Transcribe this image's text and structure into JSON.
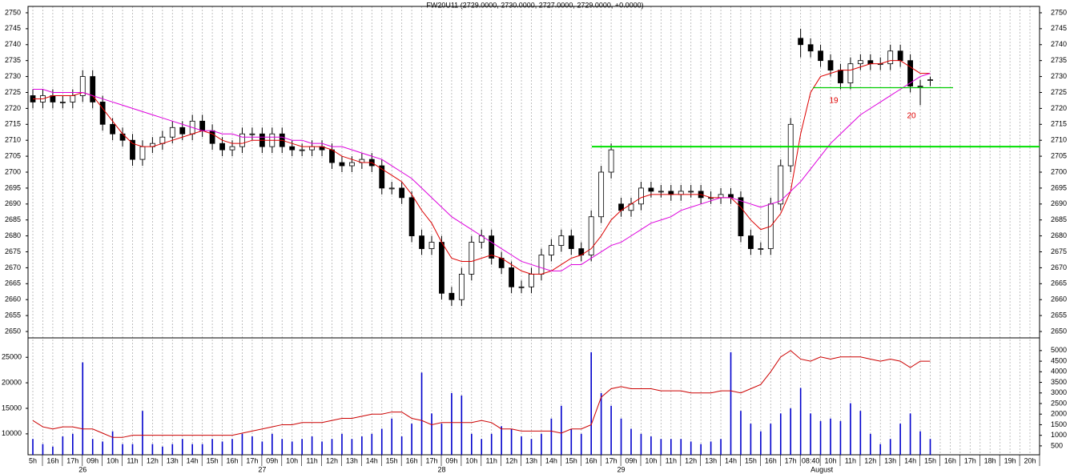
{
  "chart_data": [
    {
      "type": "candlestick",
      "title": "FW20U11 (2729.0000, 2730.0000, 2727.0000, 2729.0000, +0.0000)",
      "categories": [
        "5h",
        null,
        "16h",
        null,
        "17h",
        null,
        "09h",
        null,
        "10h",
        null,
        "11h",
        null,
        "12h",
        null,
        "13h",
        null,
        "14h",
        null,
        "15h",
        null,
        "16h",
        null,
        "17h",
        null,
        "09h",
        null,
        "10h",
        null,
        "11h",
        null,
        "12h",
        null,
        "13h",
        null,
        "14h",
        null,
        "15h",
        null,
        "16h",
        null,
        "17h",
        null,
        "09h",
        null,
        "10h",
        null,
        "11h",
        null,
        "12h",
        null,
        "13h",
        null,
        "14h",
        null,
        "15h",
        null,
        "16h",
        null,
        "17h",
        null,
        "09h",
        null,
        "10h",
        null,
        "11h",
        null,
        "12h",
        null,
        "13h",
        null,
        "14h",
        null,
        "15h",
        null,
        "16h",
        null,
        "17h",
        null,
        "08:40",
        null,
        "10h",
        null,
        "11h",
        null,
        "12h",
        null,
        "13h",
        null,
        "14h",
        null,
        "15h",
        null,
        "16h",
        null,
        "17h",
        null,
        "18h",
        null,
        "19h",
        null,
        "20h"
      ],
      "day_labels": [
        "26",
        "27",
        "28",
        "29",
        "August"
      ],
      "open": [
        2724,
        2722,
        2724,
        2722,
        2722,
        2724,
        2730,
        2722,
        2715,
        2712,
        2710,
        2704,
        2708,
        2709,
        2711,
        2714,
        2712,
        2716,
        2713,
        2709,
        2707,
        2708,
        2712,
        2712,
        2708,
        2712,
        2708,
        2707,
        2707,
        2708,
        2707,
        2703,
        2702,
        2703,
        2704,
        2702,
        2695,
        2695,
        2692,
        2680,
        2676,
        2678,
        2662,
        2660,
        2668,
        2678,
        2680,
        2673,
        2670,
        2664,
        2664,
        2668,
        2674,
        2677,
        2680,
        2676,
        2674,
        2686,
        2700,
        2690,
        2688,
        2690,
        2695,
        2694,
        2694,
        2693,
        2694,
        2694,
        2692,
        2692,
        2693,
        2692,
        2680,
        2676,
        2676,
        2690,
        2702,
        2742,
        2740,
        2738,
        2735,
        2732,
        2728,
        2734,
        2735,
        2734,
        2734,
        2738,
        2735,
        2727,
        2729,
        null,
        null,
        null,
        null,
        null,
        null,
        null,
        null,
        null,
        null
      ],
      "high": [
        2726,
        2726,
        2726,
        2724,
        2726,
        2732,
        2732,
        2724,
        2717,
        2714,
        2712,
        2710,
        2711,
        2713,
        2716,
        2716,
        2718,
        2718,
        2715,
        2711,
        2710,
        2714,
        2714,
        2714,
        2714,
        2714,
        2710,
        2709,
        2710,
        2710,
        2709,
        2705,
        2705,
        2706,
        2706,
        2704,
        2697,
        2697,
        2694,
        2682,
        2680,
        2680,
        2664,
        2670,
        2680,
        2682,
        2682,
        2675,
        2672,
        2666,
        2670,
        2676,
        2679,
        2682,
        2682,
        2678,
        2688,
        2702,
        2709,
        2692,
        2692,
        2697,
        2697,
        2696,
        2696,
        2696,
        2696,
        2696,
        2694,
        2695,
        2695,
        2694,
        2682,
        2678,
        2692,
        2704,
        2717,
        2745,
        2742,
        2740,
        2737,
        2734,
        2736,
        2737,
        2737,
        2736,
        2740,
        2740,
        2737,
        2729,
        2730,
        null,
        null,
        null,
        null,
        null,
        null,
        null,
        null,
        null,
        null
      ],
      "low": [
        2720,
        2720,
        2720,
        2720,
        2720,
        2722,
        2720,
        2713,
        2710,
        2708,
        2702,
        2702,
        2706,
        2707,
        2709,
        2710,
        2710,
        2711,
        2707,
        2705,
        2705,
        2706,
        2710,
        2706,
        2706,
        2706,
        2705,
        2705,
        2705,
        2705,
        2701,
        2700,
        2700,
        2701,
        2700,
        2693,
        2693,
        2690,
        2678,
        2674,
        2674,
        2660,
        2658,
        2658,
        2666,
        2676,
        2671,
        2668,
        2662,
        2662,
        2662,
        2666,
        2672,
        2675,
        2674,
        2672,
        2672,
        2684,
        2698,
        2686,
        2686,
        2688,
        2692,
        2692,
        2691,
        2691,
        2692,
        2690,
        2690,
        2690,
        2690,
        2678,
        2674,
        2674,
        2674,
        2688,
        2700,
        2736,
        2736,
        2733,
        2730,
        2726,
        2726,
        2732,
        2732,
        2732,
        2732,
        2733,
        2725,
        2721,
        2727,
        null,
        null,
        null,
        null,
        null,
        null,
        null,
        null,
        null,
        null
      ],
      "close": [
        2722,
        2724,
        2722,
        2722,
        2724,
        2730,
        2722,
        2715,
        2712,
        2710,
        2704,
        2708,
        2709,
        2711,
        2714,
        2712,
        2716,
        2713,
        2709,
        2707,
        2708,
        2712,
        2712,
        2708,
        2712,
        2708,
        2707,
        2707,
        2708,
        2707,
        2703,
        2702,
        2703,
        2704,
        2702,
        2695,
        2695,
        2692,
        2680,
        2676,
        2678,
        2662,
        2660,
        2668,
        2678,
        2680,
        2673,
        2670,
        2664,
        2664,
        2668,
        2674,
        2677,
        2680,
        2676,
        2674,
        2686,
        2700,
        2707,
        2688,
        2690,
        2695,
        2694,
        2694,
        2693,
        2694,
        2694,
        2692,
        2692,
        2693,
        2692,
        2680,
        2676,
        2676,
        2690,
        2702,
        2715,
        2740,
        2738,
        2735,
        2732,
        2728,
        2734,
        2735,
        2734,
        2734,
        2738,
        2735,
        2727,
        2727,
        2729,
        null,
        null,
        null,
        null,
        null,
        null,
        null,
        null,
        null,
        null
      ],
      "series": [
        {
          "color": "#dd0000",
          "values": [
            2723,
            2723,
            2724,
            2724,
            2724,
            2725,
            2724,
            2720,
            2716,
            2712,
            2709,
            2708,
            2708,
            2709,
            2710,
            2711,
            2712,
            2713,
            2712,
            2710,
            2709,
            2709,
            2710,
            2710,
            2710,
            2710,
            2709,
            2708,
            2708,
            2708,
            2707,
            2705,
            2704,
            2703,
            2703,
            2701,
            2699,
            2697,
            2693,
            2688,
            2684,
            2678,
            2673,
            2672,
            2672,
            2673,
            2674,
            2673,
            2671,
            2669,
            2668,
            2668,
            2669,
            2671,
            2673,
            2674,
            2676,
            2680,
            2685,
            2688,
            2690,
            2692,
            2693,
            2693,
            2693,
            2693,
            2693,
            2693,
            2692,
            2692,
            2692,
            2689,
            2685,
            2682,
            2683,
            2687,
            2694,
            2712,
            2725,
            2730,
            2731,
            2732,
            2732,
            2733,
            2734,
            2734,
            2735,
            2735,
            2733,
            2731,
            2731,
            null,
            null,
            null,
            null,
            null,
            null,
            null,
            null,
            null,
            null
          ]
        },
        {
          "color": "#dd00dd",
          "values": [
            2726,
            2726,
            2725,
            2725,
            2725,
            2725,
            2724,
            2723,
            2722,
            2721,
            2720,
            2719,
            2718,
            2717,
            2716,
            2715,
            2714,
            2713,
            2713,
            2712,
            2712,
            2711,
            2711,
            2711,
            2711,
            2711,
            2710,
            2710,
            2709,
            2709,
            2708,
            2708,
            2707,
            2706,
            2705,
            2704,
            2702,
            2700,
            2698,
            2695,
            2692,
            2689,
            2686,
            2684,
            2682,
            2680,
            2678,
            2676,
            2674,
            2672,
            2671,
            2670,
            2669,
            2669,
            2671,
            2671,
            2673,
            2675,
            2677,
            2678,
            2680,
            2682,
            2684,
            2685,
            2686,
            2688,
            2689,
            2690,
            2691,
            2692,
            2692,
            2691,
            2690,
            2689,
            2690,
            2691,
            2694,
            2697,
            2701,
            2705,
            2709,
            2712,
            2715,
            2718,
            2720,
            2722,
            2724,
            2726,
            2728,
            2730,
            2731,
            null,
            null,
            null,
            null,
            null,
            null,
            null,
            null,
            null,
            null
          ]
        }
      ],
      "hlines": [
        {
          "value": 2708,
          "color": "#00e000"
        },
        {
          "value": 2726.5,
          "color": "#00cc00"
        }
      ],
      "annotations": [
        "19",
        "20"
      ],
      "annotation_color": "#e00000",
      "ylim": [
        2648,
        2752
      ],
      "yticks": [
        2650,
        2655,
        2660,
        2665,
        2670,
        2675,
        2680,
        2685,
        2690,
        2695,
        2700,
        2705,
        2710,
        2715,
        2720,
        2725,
        2730,
        2735,
        2740,
        2745,
        2750
      ]
    },
    {
      "type": "bar",
      "values": [
        9000,
        8000,
        7500,
        9500,
        10000,
        24000,
        9000,
        8500,
        10500,
        8000,
        8000,
        14500,
        8000,
        7500,
        8000,
        9000,
        8000,
        8000,
        9000,
        8500,
        9000,
        10000,
        9500,
        8500,
        10000,
        9000,
        8500,
        9000,
        9500,
        8500,
        9000,
        10000,
        9000,
        9500,
        10000,
        11000,
        13000,
        9500,
        12000,
        22000,
        14000,
        12000,
        18000,
        17500,
        10000,
        9000,
        10000,
        11500,
        11000,
        9500,
        9000,
        10000,
        13000,
        15500,
        11000,
        10000,
        26000,
        18000,
        15500,
        13000,
        11000,
        10000,
        9500,
        9000,
        9000,
        9000,
        8500,
        8000,
        8500,
        9000,
        26000,
        14500,
        12000,
        10500,
        12000,
        14000,
        15000,
        19000,
        14000,
        12500,
        13000,
        12500,
        16000,
        14500,
        10000,
        8000,
        9000,
        12000,
        14000,
        10500,
        9000,
        null,
        null,
        null,
        null,
        null,
        null,
        null,
        null,
        null,
        null
      ],
      "color": "#0000cc",
      "ylim": [
        5900,
        28800
      ],
      "yticks": [
        10000,
        15000,
        20000,
        25000
      ],
      "series": [
        {
          "color": "#cc0000",
          "axis": "y2",
          "values": [
            1700,
            1400,
            1300,
            1400,
            1400,
            1300,
            1300,
            1100,
            900,
            900,
            1000,
            1000,
            1000,
            1000,
            1000,
            1000,
            1000,
            1000,
            1000,
            1000,
            1000,
            1100,
            1200,
            1300,
            1400,
            1500,
            1500,
            1600,
            1600,
            1600,
            1700,
            1800,
            1800,
            1900,
            2000,
            2000,
            2100,
            2100,
            1800,
            1700,
            1500,
            1600,
            1600,
            1600,
            1600,
            1700,
            1600,
            1300,
            1300,
            1200,
            1200,
            1200,
            1200,
            1100,
            1300,
            1300,
            1500,
            2800,
            3200,
            3300,
            3200,
            3200,
            3200,
            3100,
            3100,
            3100,
            3000,
            3000,
            3000,
            3100,
            3100,
            3000,
            3200,
            3400,
            4000,
            4700,
            5000,
            4600,
            4500,
            4700,
            4600,
            4700,
            4700,
            4700,
            4600,
            4500,
            4600,
            4500,
            4200,
            4500,
            4500,
            null,
            null,
            null,
            null,
            null,
            null,
            null,
            null,
            null,
            null
          ]
        }
      ],
      "y2lim": [
        80,
        5600
      ],
      "y2ticks": [
        500,
        1000,
        1500,
        2000,
        2500,
        3000,
        3500,
        4000,
        4500,
        5000
      ]
    }
  ]
}
